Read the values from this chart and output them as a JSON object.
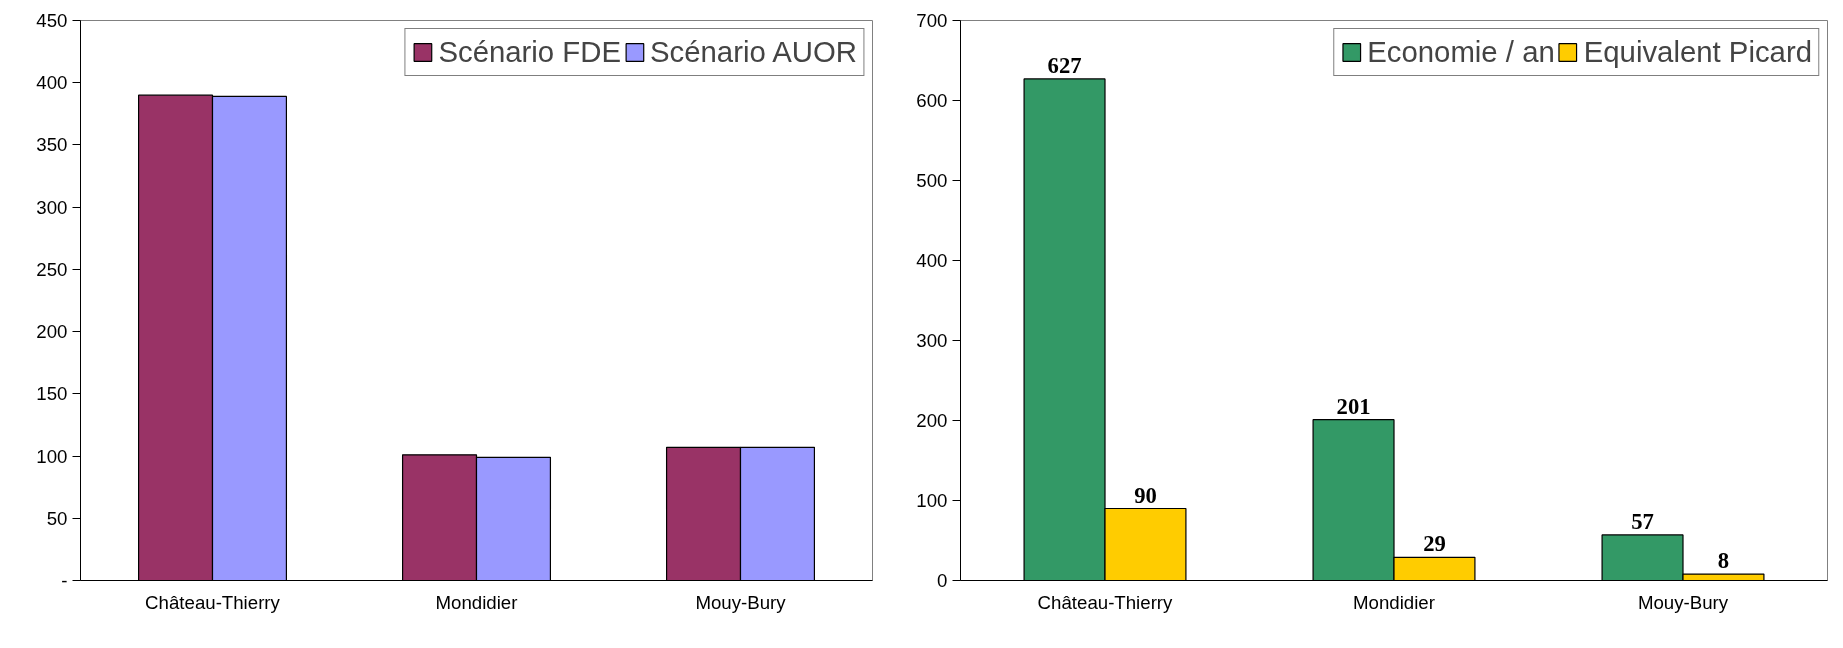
{
  "chart_data": [
    {
      "type": "bar",
      "categories": [
        "Château-Thierry",
        "Mondidier",
        "Mouy-Bury"
      ],
      "series": [
        {
          "name": "Scénario FDE",
          "color": "#993366",
          "values": [
            390,
            101,
            107
          ]
        },
        {
          "name": "Scénario AUOR",
          "color": "#9999ff",
          "values": [
            389,
            99,
            107
          ]
        }
      ],
      "ylim": [
        0,
        450
      ],
      "yticks": [
        {
          "value": 0,
          "label": "-"
        },
        50,
        100,
        150,
        200,
        250,
        300,
        350,
        400,
        450
      ],
      "grid": false,
      "legend": "top right"
    },
    {
      "type": "bar",
      "categories": [
        "Château-Thierry",
        "Mondidier",
        "Mouy-Bury"
      ],
      "series": [
        {
          "name": "Economie / an",
          "color": "#339966",
          "values": [
            627,
            201,
            57
          ]
        },
        {
          "name": "Equivalent Picard",
          "color": "#ffcc00",
          "values": [
            90,
            29,
            8
          ]
        }
      ],
      "ylim": [
        0,
        700
      ],
      "yticks": [
        0,
        100,
        200,
        300,
        400,
        500,
        600,
        700
      ],
      "grid": false,
      "legend": "top right",
      "data_labels": true
    }
  ]
}
